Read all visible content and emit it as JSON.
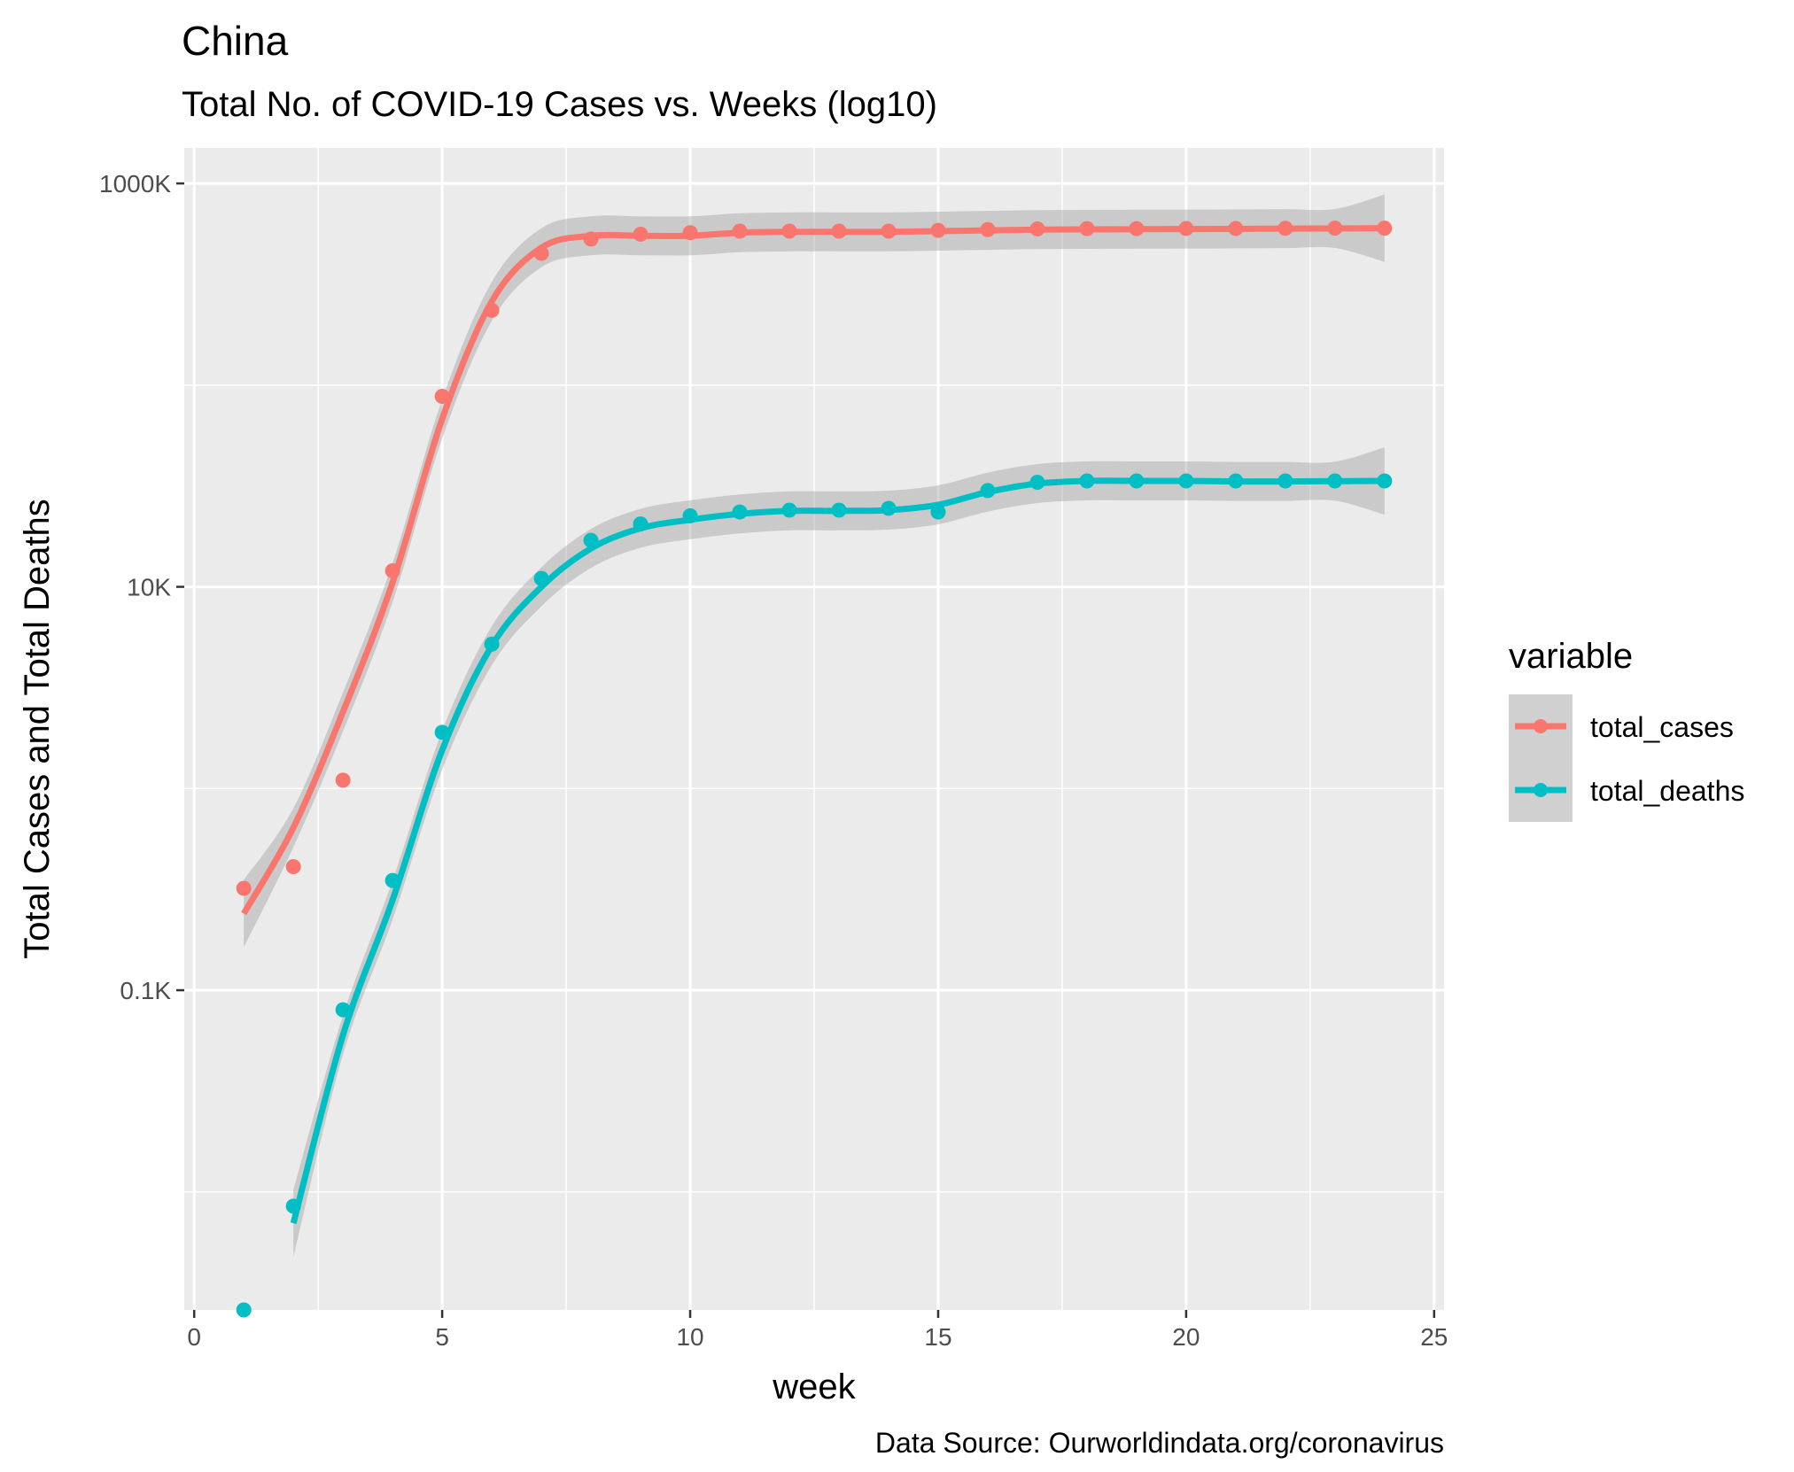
{
  "chart_data": {
    "type": "line",
    "title": "China",
    "subtitle": "Total No. of COVID-19 Cases vs. Weeks (log10)",
    "xlabel": "week",
    "ylabel": "Total Cases and Total Deaths",
    "caption": "Data Source: Ourworldindata.org/coronavirus",
    "y_scale": "log10",
    "x_ticks": [
      "0",
      "5",
      "10",
      "15",
      "20",
      "25"
    ],
    "y_ticks": [
      "0.1K",
      "10K",
      "1000K"
    ],
    "xlim": [
      0,
      25
    ],
    "ylim": [
      2.6,
      1500000
    ],
    "grid": true,
    "legend": {
      "title": "variable",
      "position": "right"
    },
    "x": [
      1,
      2,
      3,
      4,
      5,
      6,
      7,
      8,
      9,
      10,
      11,
      12,
      13,
      14,
      15,
      16,
      17,
      18,
      19,
      20,
      21,
      22,
      23,
      24
    ],
    "series": [
      {
        "name": "total_cases",
        "color": "#F8766D",
        "values": [
          320,
          410,
          1100,
          12000,
          88000,
          235000,
          450000,
          530000,
          560000,
          570000,
          580000,
          580000,
          580000,
          580000,
          585000,
          590000,
          595000,
          597000,
          597000,
          598000,
          598000,
          599000,
          600000,
          600000
        ],
        "smooth": [
          240,
          640,
          2400,
          10500,
          68000,
          260000,
          480000,
          550000,
          550000,
          550000,
          570000,
          575000,
          575000,
          575000,
          580000,
          585000,
          590000,
          592000,
          593000,
          594000,
          595000,
          597000,
          598000,
          600000
        ]
      },
      {
        "name": "total_deaths",
        "color": "#00BFC4",
        "values": [
          2.6,
          8.5,
          80,
          350,
          1900,
          5200,
          11000,
          17000,
          20500,
          22500,
          23500,
          24000,
          24000,
          24500,
          23500,
          30000,
          33000,
          33500,
          33500,
          33500,
          33500,
          33500,
          33500,
          33500
        ],
        "smooth": [
          null,
          7,
          60,
          280,
          1550,
          5100,
          10000,
          15500,
          19500,
          21500,
          23000,
          23800,
          23800,
          24000,
          25500,
          29500,
          32500,
          33500,
          33500,
          33500,
          33300,
          33300,
          33400,
          33500
        ]
      }
    ]
  }
}
